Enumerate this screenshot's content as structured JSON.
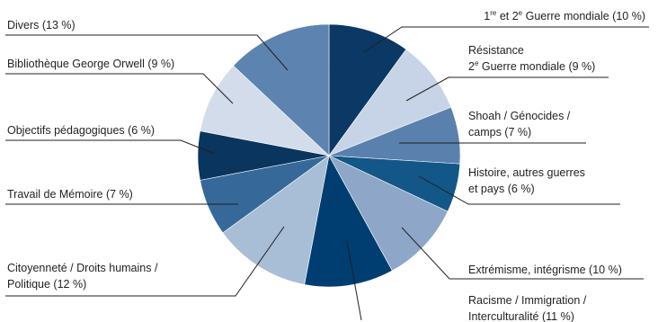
{
  "chart_data": {
    "type": "pie",
    "title": "",
    "start_at": "top",
    "direction": "clockwise",
    "slices": [
      {
        "label": "1re et 2e Guerre mondiale",
        "value": 10,
        "color": "#0b3864"
      },
      {
        "label": "Résistance 2e Guerre mondiale",
        "value": 9,
        "color": "#c7d3e6"
      },
      {
        "label": "Shoah / Génocides / camps",
        "value": 7,
        "color": "#5a81ad"
      },
      {
        "label": "Histoire, autres guerres et pays",
        "value": 6,
        "color": "#125787"
      },
      {
        "label": "Extrémisme, intégrisme",
        "value": 10,
        "color": "#8ea6c7"
      },
      {
        "label": "Racisme / Immigration / Interculturalité",
        "value": 11,
        "color": "#003e72"
      },
      {
        "label": "Citoyenneté / Droits humains / Politique",
        "value": 12,
        "color": "#a8bdd6"
      },
      {
        "label": "Travail de Mémoire",
        "value": 7,
        "color": "#36699a"
      },
      {
        "label": "Objectifs pédagogiques",
        "value": 6,
        "color": "#0a355f"
      },
      {
        "label": "Bibliothèque George Orwell",
        "value": 9,
        "color": "#d2dcea"
      },
      {
        "label": "Divers",
        "value": 13,
        "color": "#5d84b0"
      }
    ]
  },
  "labels": {
    "s0": {
      "pre": "1",
      "sup1": "re",
      "mid": " et 2",
      "sup2": "e",
      "post": " Guerre mondiale (10 %)"
    },
    "s1": {
      "line1": "Résistance",
      "l2pre": "2",
      "l2sup": "e",
      "l2post": " Guerre mondiale (9 %)"
    },
    "s2": {
      "line1": "Shoah / Génocides /",
      "line2": "camps (7 %)"
    },
    "s3": {
      "line1": "Histoire, autres guerres",
      "line2": "et pays (6 %)"
    },
    "s4": {
      "line1": "Extrémisme, intégrisme (10 %)"
    },
    "s5": {
      "line1": "Racisme / Immigration /",
      "line2": "Interculturalité (11 %)"
    },
    "s6": {
      "line1": "Citoyenneté / Droits humains /",
      "line2": "Politique (12 %)"
    },
    "s7": {
      "line1": "Travail de Mémoire (7 %)"
    },
    "s8": {
      "line1": "Objectifs pédagogiques (6 %)"
    },
    "s9": {
      "line1": "Bibliothèque George Orwell (9 %)"
    },
    "s10": {
      "line1": "Divers (13 %)"
    }
  }
}
